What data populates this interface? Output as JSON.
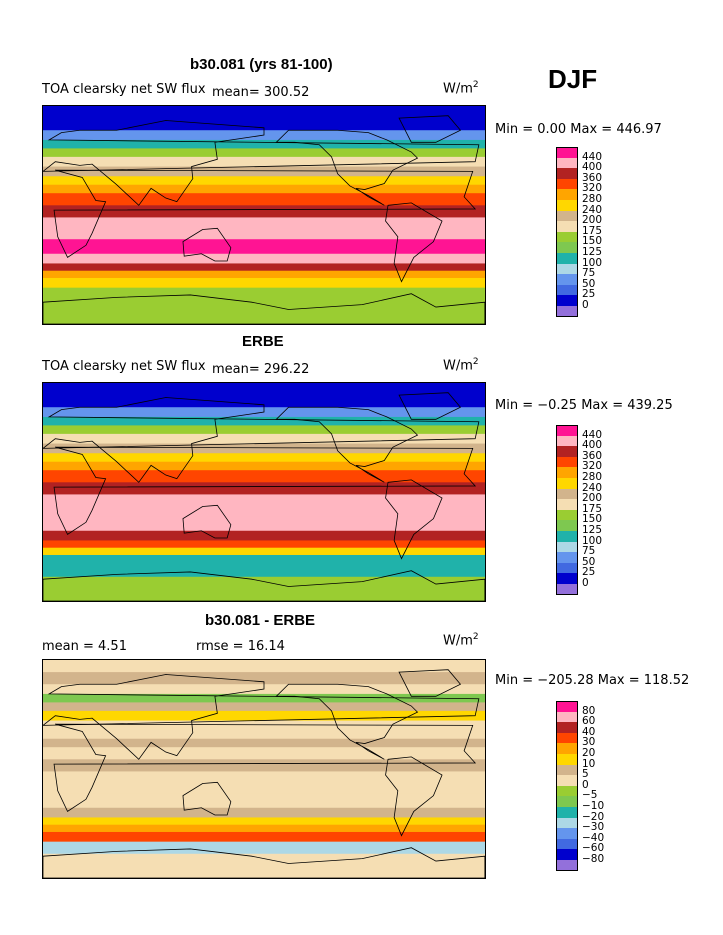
{
  "season": "DJF",
  "panels": [
    {
      "title": "b30.081 (yrs 81-100)",
      "var_label": "TOA clearsky net SW flux",
      "mean_text": "mean= 300.52",
      "rmse_text": "",
      "units_base": "W/m",
      "units_sup": "2",
      "minmax_text": "Min =   0.00 Max = 446.97"
    },
    {
      "title": "ERBE",
      "var_label": "TOA clearsky net SW flux",
      "mean_text": "mean= 296.22",
      "rmse_text": "",
      "units_base": "W/m",
      "units_sup": "2",
      "minmax_text": "Min =  −0.25 Max = 439.25"
    },
    {
      "title": "b30.081 - ERBE",
      "var_label": "",
      "mean_text": "mean =    4.51",
      "rmse_text": "rmse =   16.14",
      "units_base": "W/m",
      "units_sup": "2",
      "minmax_text": "Min = −205.28 Max = 118.52"
    }
  ],
  "chart_data": [
    {
      "type": "heatmap",
      "title": "b30.081 (yrs 81-100)",
      "subtitle": "TOA clearsky net SW flux",
      "units": "W/m2",
      "mean": 300.52,
      "min": 0.0,
      "max": 446.97,
      "levels": [
        440,
        400,
        360,
        320,
        280,
        240,
        200,
        175,
        150,
        125,
        100,
        75,
        50,
        25,
        0
      ],
      "colors": [
        "#ff1493",
        "#ffb6c1",
        "#b22222",
        "#ff4500",
        "#ffa500",
        "#ffd700",
        "#d2b48c",
        "#f5deb3",
        "#9acd32",
        "#7ec850",
        "#20b2aa",
        "#add8e6",
        "#6495ed",
        "#4169e1",
        "#0000cd",
        "#9370db"
      ],
      "zonal_bands_lat": [
        90,
        80,
        70,
        62,
        55,
        48,
        40,
        32,
        25,
        18,
        8,
        -2,
        -20,
        -32,
        -40,
        -46,
        -52,
        -60,
        -70,
        -90
      ],
      "zonal_bands_value": [
        10,
        20,
        60,
        110,
        160,
        190,
        230,
        270,
        310,
        350,
        390,
        420,
        440,
        400,
        380,
        300,
        240,
        170,
        160
      ]
    },
    {
      "type": "heatmap",
      "title": "ERBE",
      "subtitle": "TOA clearsky net SW flux",
      "units": "W/m2",
      "mean": 296.22,
      "min": -0.25,
      "max": 439.25,
      "levels": [
        440,
        400,
        360,
        320,
        280,
        240,
        200,
        175,
        150,
        125,
        100,
        75,
        50,
        25,
        0
      ],
      "colors": [
        "#ff1493",
        "#ffb6c1",
        "#b22222",
        "#ff4500",
        "#ffa500",
        "#ffd700",
        "#d2b48c",
        "#f5deb3",
        "#9acd32",
        "#7ec850",
        "#20b2aa",
        "#add8e6",
        "#6495ed",
        "#4169e1",
        "#0000cd",
        "#9370db"
      ],
      "zonal_bands_lat": [
        90,
        80,
        70,
        62,
        55,
        48,
        40,
        32,
        25,
        18,
        8,
        -2,
        -20,
        -32,
        -40,
        -46,
        -52,
        -60,
        -70,
        -90
      ],
      "zonal_bands_value": [
        10,
        20,
        50,
        110,
        160,
        190,
        230,
        270,
        300,
        340,
        380,
        410,
        410,
        380,
        340,
        240,
        120,
        100,
        150
      ]
    },
    {
      "type": "heatmap",
      "title": "b30.081 - ERBE",
      "subtitle": "",
      "units": "W/m2",
      "mean": 4.51,
      "rmse": 16.14,
      "min": -205.28,
      "max": 118.52,
      "levels": [
        80,
        60,
        40,
        30,
        20,
        10,
        5,
        0,
        -5,
        -10,
        -20,
        -30,
        -40,
        -60,
        -80
      ],
      "colors": [
        "#ff1493",
        "#ffb6c1",
        "#b22222",
        "#ff4500",
        "#ffa500",
        "#ffd700",
        "#d2b48c",
        "#f5deb3",
        "#9acd32",
        "#7ec850",
        "#20b2aa",
        "#add8e6",
        "#6495ed",
        "#4169e1",
        "#0000cd",
        "#9370db"
      ],
      "zonal_bands_lat": [
        90,
        80,
        70,
        62,
        55,
        48,
        40,
        32,
        25,
        18,
        8,
        -2,
        -20,
        -32,
        -40,
        -46,
        -52,
        -60,
        -70,
        -90
      ],
      "zonal_bands_value": [
        3,
        8,
        2,
        -8,
        6,
        12,
        4,
        3,
        8,
        2,
        6,
        3,
        4,
        8,
        14,
        22,
        35,
        -30,
        2
      ]
    }
  ]
}
